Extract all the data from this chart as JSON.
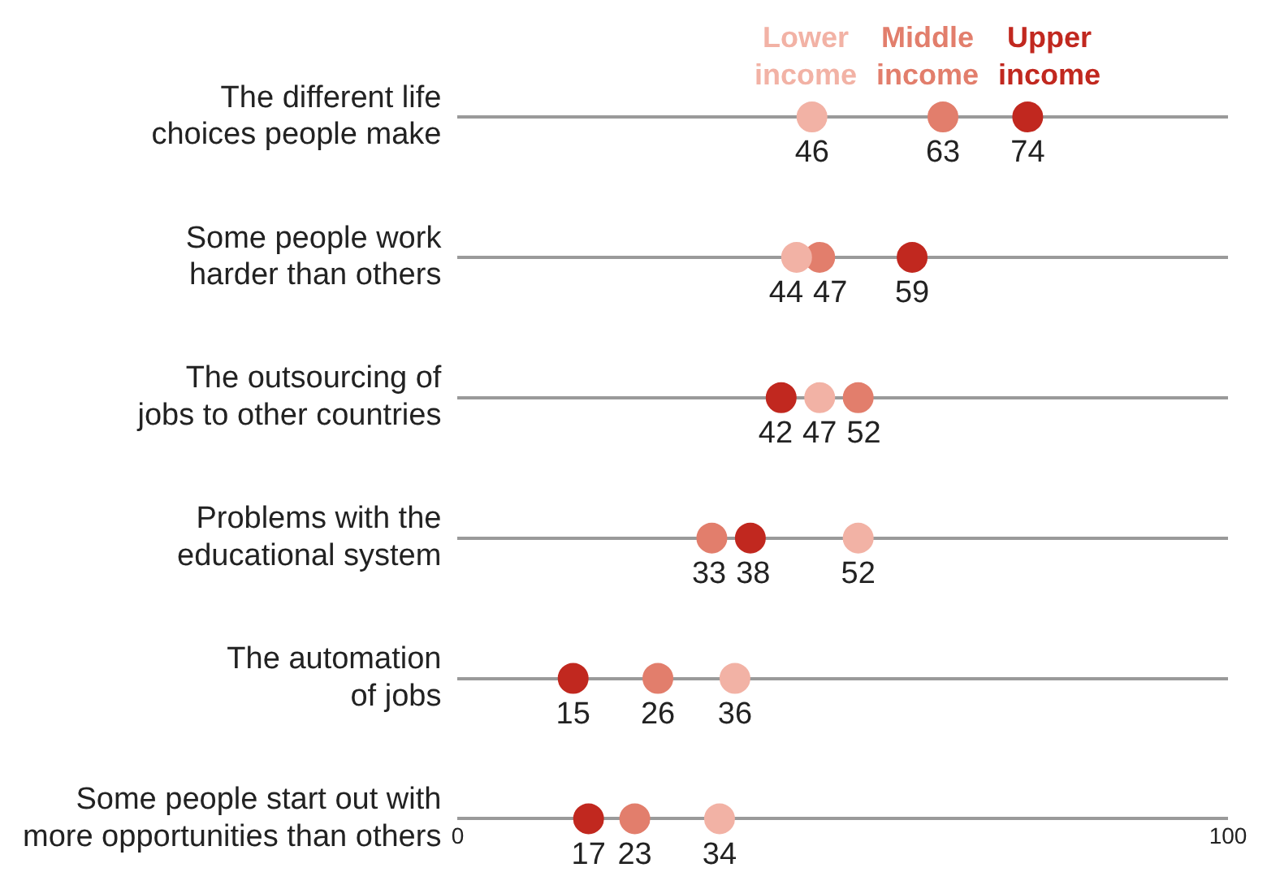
{
  "chart_data": {
    "type": "scatter",
    "categories": [
      "The different life choices people make",
      "Some people work harder than others",
      "The outsourcing of jobs to other countries",
      "Problems with the educational system",
      "The automation of jobs",
      "Some people start out with more opportunities than others"
    ],
    "series": [
      {
        "name": "Lower income",
        "color": "#f2b2a5",
        "values": [
          46,
          44,
          47,
          52,
          36,
          34
        ]
      },
      {
        "name": "Middle income",
        "color": "#e27e6c",
        "values": [
          63,
          47,
          52,
          33,
          26,
          23
        ]
      },
      {
        "name": "Upper income",
        "color": "#c1281f",
        "values": [
          74,
          59,
          42,
          38,
          15,
          17
        ]
      }
    ],
    "orientation": "horizontal",
    "xlim": [
      0,
      100
    ],
    "xticks": [
      0,
      100
    ],
    "grid": "y",
    "data_labels": true,
    "marker": "circle"
  }
}
